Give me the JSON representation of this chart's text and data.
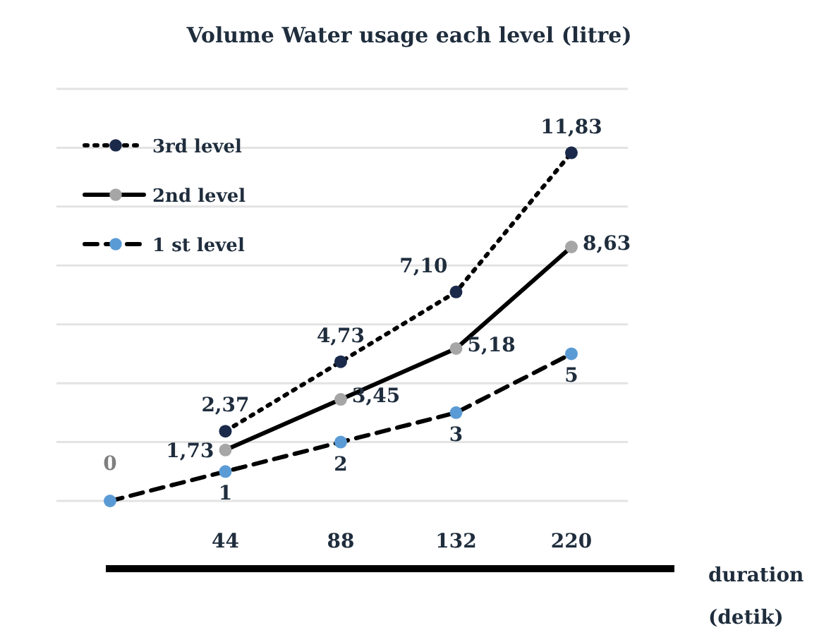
{
  "chart_data": {
    "type": "line",
    "title": "Volume Water usage each level (litre)",
    "xlabel": "duration (detik)",
    "categories": [
      null,
      "44",
      "88",
      "132",
      "220"
    ],
    "ylim": [
      0,
      14
    ],
    "yticks": [
      {
        "value": 0,
        "label": null
      },
      {
        "value": 2,
        "label": null
      },
      {
        "value": 4,
        "label": null
      },
      {
        "value": 6,
        "label": null
      },
      {
        "value": 8,
        "label": null
      },
      {
        "value": 10,
        "label": null
      },
      {
        "value": 12,
        "label": null
      },
      {
        "value": 14,
        "label": null
      }
    ],
    "grid": "y",
    "tick_labels": "x",
    "legend": "top left",
    "marker": "circle",
    "series": [
      {
        "name": "3rd level",
        "color": "#1b2a4a",
        "line_style": "dotted",
        "values": [
          null,
          2.37,
          4.73,
          7.1,
          11.83
        ],
        "value_labels": [
          null,
          "2,37",
          "4,73",
          "7,10",
          "11,83"
        ]
      },
      {
        "name": "2nd level",
        "color": "#a6a6a6",
        "line_style": "solid",
        "values": [
          null,
          1.73,
          3.45,
          5.18,
          8.63
        ],
        "value_labels": [
          null,
          "1,73",
          "3,45",
          "5,18",
          "8,63"
        ]
      },
      {
        "name": "1 st level",
        "color": "#5b9bd5",
        "line_style": "dashed",
        "values": [
          0,
          1,
          2,
          3,
          5
        ],
        "value_labels": [
          "0",
          "1",
          "2",
          "3",
          "5"
        ]
      }
    ]
  }
}
